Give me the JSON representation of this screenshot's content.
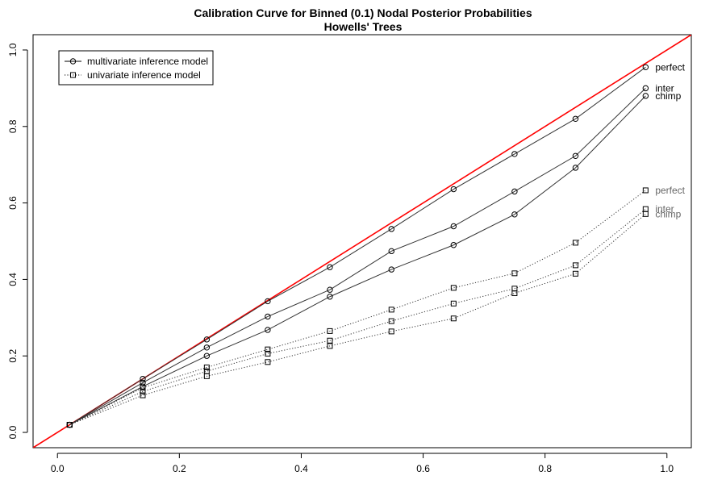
{
  "chart_data": {
    "type": "line",
    "title": "Calibration Curve for Binned (0.1) Nodal Posterior Probabilities",
    "subtitle": "Howells' Trees",
    "xlabel": "",
    "ylabel": "",
    "xlim": [
      -0.04,
      1.04
    ],
    "ylim": [
      -0.04,
      1.04
    ],
    "xticks": [
      "0.0",
      "0.2",
      "0.4",
      "0.6",
      "0.8",
      "1.0"
    ],
    "yticks": [
      "0.0",
      "0.2",
      "0.4",
      "0.6",
      "0.8",
      "1.0"
    ],
    "grid": false,
    "legend_position": "top-left",
    "legend": [
      {
        "label": "multivariate inference model",
        "marker": "circle",
        "line": "solid"
      },
      {
        "label": "univariate inference model",
        "marker": "square",
        "line": "dotted"
      }
    ],
    "reference_line": {
      "x": [
        -0.04,
        1.04
      ],
      "y": [
        -0.04,
        1.04
      ],
      "color": "#ff0000"
    },
    "series": [
      {
        "name": "perfect",
        "group": "multivariate",
        "marker": "circle",
        "line": "solid",
        "color": "#333333",
        "x": [
          0.02,
          0.14,
          0.245,
          0.345,
          0.447,
          0.548,
          0.65,
          0.75,
          0.85,
          0.965
        ],
        "y": [
          0.02,
          0.14,
          0.243,
          0.343,
          0.432,
          0.532,
          0.636,
          0.728,
          0.82,
          0.955
        ]
      },
      {
        "name": "inter",
        "group": "multivariate",
        "marker": "circle",
        "line": "solid",
        "color": "#333333",
        "x": [
          0.02,
          0.14,
          0.245,
          0.345,
          0.447,
          0.548,
          0.65,
          0.75,
          0.85,
          0.965
        ],
        "y": [
          0.02,
          0.13,
          0.222,
          0.303,
          0.373,
          0.474,
          0.539,
          0.63,
          0.723,
          0.9
        ]
      },
      {
        "name": "chimp",
        "group": "multivariate",
        "marker": "circle",
        "line": "solid",
        "color": "#333333",
        "x": [
          0.02,
          0.14,
          0.245,
          0.345,
          0.447,
          0.548,
          0.65,
          0.75,
          0.85,
          0.965
        ],
        "y": [
          0.02,
          0.12,
          0.2,
          0.268,
          0.355,
          0.426,
          0.49,
          0.57,
          0.692,
          0.88
        ]
      },
      {
        "name": "perfect",
        "group": "univariate",
        "marker": "square",
        "line": "dotted",
        "color": "#333333",
        "x": [
          0.02,
          0.14,
          0.245,
          0.345,
          0.447,
          0.548,
          0.65,
          0.75,
          0.85,
          0.965
        ],
        "y": [
          0.02,
          0.117,
          0.17,
          0.217,
          0.265,
          0.321,
          0.378,
          0.416,
          0.496,
          0.633
        ]
      },
      {
        "name": "inter",
        "group": "univariate",
        "marker": "square",
        "line": "dotted",
        "color": "#333333",
        "x": [
          0.02,
          0.14,
          0.245,
          0.345,
          0.447,
          0.548,
          0.65,
          0.75,
          0.85,
          0.965
        ],
        "y": [
          0.02,
          0.107,
          0.16,
          0.206,
          0.24,
          0.291,
          0.337,
          0.376,
          0.437,
          0.584
        ]
      },
      {
        "name": "chimp",
        "group": "univariate",
        "marker": "square",
        "line": "dotted",
        "color": "#333333",
        "x": [
          0.02,
          0.14,
          0.245,
          0.345,
          0.447,
          0.548,
          0.65,
          0.75,
          0.85,
          0.965
        ],
        "y": [
          0.02,
          0.097,
          0.147,
          0.184,
          0.226,
          0.264,
          0.298,
          0.364,
          0.415,
          0.571
        ]
      }
    ],
    "end_labels": [
      {
        "text": "perfect",
        "series": 0,
        "color": "#000000"
      },
      {
        "text": "inter",
        "series": 1,
        "color": "#000000"
      },
      {
        "text": "chimp",
        "series": 2,
        "color": "#000000"
      },
      {
        "text": "perfect",
        "series": 3,
        "color": "#666666"
      },
      {
        "text": "inter",
        "series": 4,
        "color": "#666666"
      },
      {
        "text": "chimp",
        "series": 5,
        "color": "#666666"
      }
    ]
  }
}
